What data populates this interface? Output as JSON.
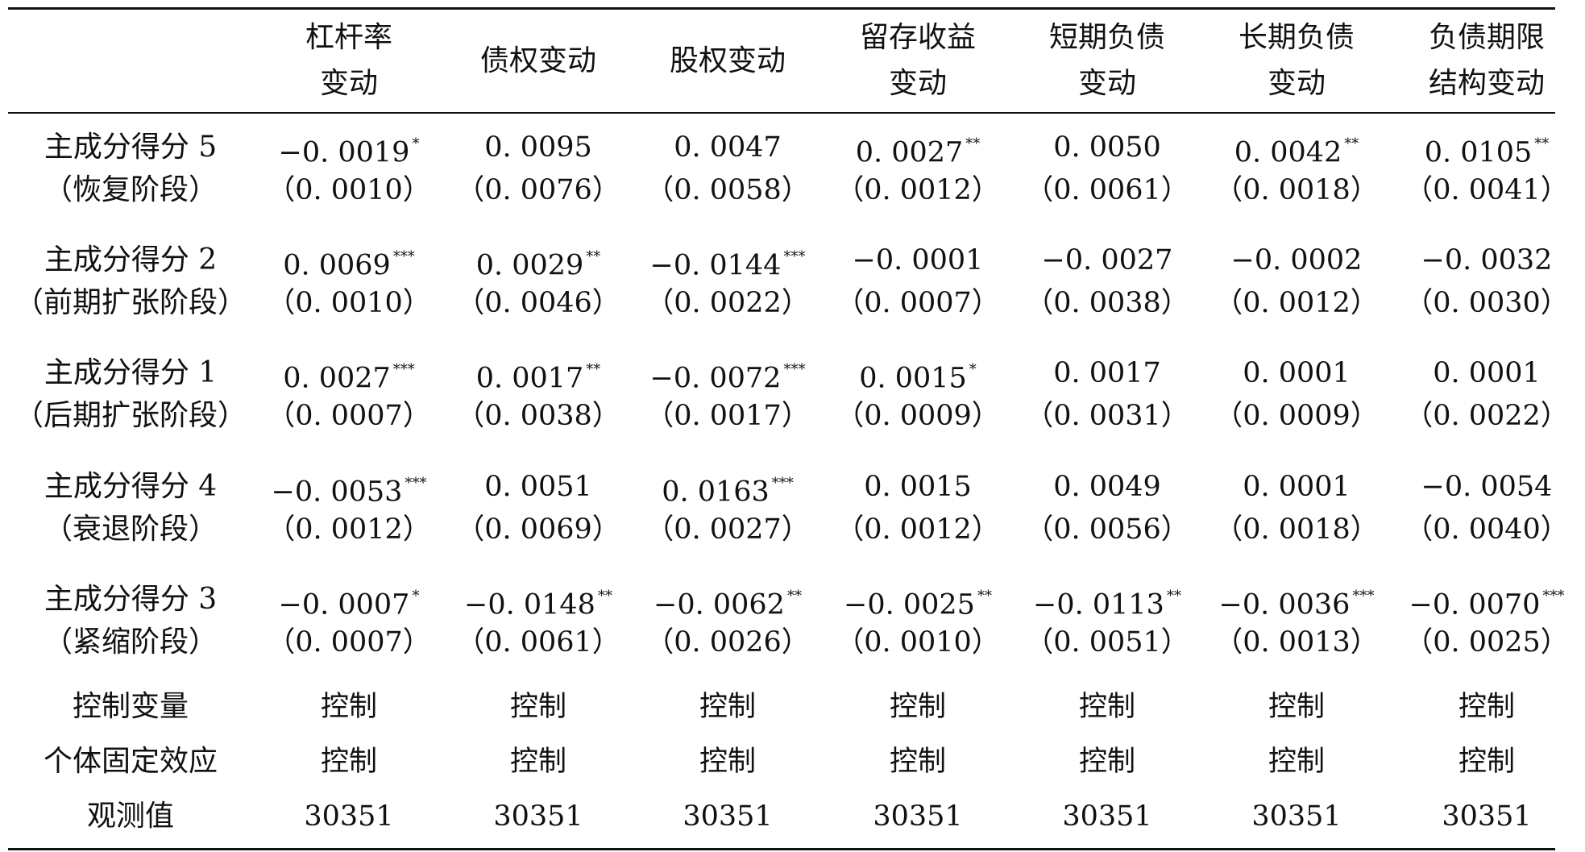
{
  "columns": [
    [
      "杠杆率",
      "变动"
    ],
    [
      "债权变动"
    ],
    [
      "股权变动"
    ],
    [
      "留存收益",
      "变动"
    ],
    [
      "短期负债",
      "变动"
    ],
    [
      "长期负债",
      "变动"
    ],
    [
      "负债期限",
      "结构变动"
    ]
  ],
  "rows": [
    {
      "label": [
        "主成分得分 5",
        "（恢复阶段）"
      ],
      "coef": [
        "−0. 0019",
        "0. 0095",
        "0. 0047",
        "0. 0027",
        "0. 0050",
        "0. 0042",
        "0. 0105"
      ],
      "stars": [
        "*",
        "",
        "",
        "**",
        "",
        "**",
        "**"
      ],
      "se": [
        "（0. 0010）",
        "（0. 0076）",
        "（0. 0058）",
        "（0. 0012）",
        "（0. 0061）",
        "（0. 0018）",
        "（0. 0041）"
      ]
    },
    {
      "label": [
        "主成分得分 2",
        "（前期扩张阶段）"
      ],
      "coef": [
        "0. 0069",
        "0. 0029",
        "−0. 0144",
        "−0. 0001",
        "−0. 0027",
        "−0. 0002",
        "−0. 0032"
      ],
      "stars": [
        "***",
        "**",
        "***",
        "",
        "",
        "",
        ""
      ],
      "se": [
        "（0. 0010）",
        "（0. 0046）",
        "（0. 0022）",
        "（0. 0007）",
        "（0. 0038）",
        "（0. 0012）",
        "（0. 0030）"
      ]
    },
    {
      "label": [
        "主成分得分 1",
        "（后期扩张阶段）"
      ],
      "coef": [
        "0. 0027",
        "0. 0017",
        "−0. 0072",
        "0. 0015",
        "0. 0017",
        "0. 0001",
        "0. 0001"
      ],
      "stars": [
        "***",
        "**",
        "***",
        "*",
        "",
        "",
        ""
      ],
      "se": [
        "（0. 0007）",
        "（0. 0038）",
        "（0. 0017）",
        "（0. 0009）",
        "（0. 0031）",
        "（0. 0009）",
        "（0. 0022）"
      ]
    },
    {
      "label": [
        "主成分得分 4",
        "（衰退阶段）"
      ],
      "coef": [
        "−0. 0053",
        "0. 0051",
        "0. 0163",
        "0. 0015",
        "0. 0049",
        "0. 0001",
        "−0. 0054"
      ],
      "stars": [
        "***",
        "",
        "***",
        "",
        "",
        "",
        ""
      ],
      "se": [
        "（0. 0012）",
        "（0. 0069）",
        "（0. 0027）",
        "（0. 0012）",
        "（0. 0056）",
        "（0. 0018）",
        "（0. 0040）"
      ]
    },
    {
      "label": [
        "主成分得分 3",
        "（紧缩阶段）"
      ],
      "coef": [
        "−0. 0007",
        "−0. 0148",
        "−0. 0062",
        "−0. 0025",
        "−0. 0113",
        "−0. 0036",
        "−0. 0070"
      ],
      "stars": [
        "*",
        "**",
        "**",
        "**",
        "**",
        "***",
        "***"
      ],
      "se": [
        "（0. 0007）",
        "（0. 0061）",
        "（0. 0026）",
        "（0. 0010）",
        "（0. 0051）",
        "（0. 0013）",
        "（0. 0025）"
      ]
    }
  ],
  "footer": [
    {
      "label": "控制变量",
      "values": [
        "控制",
        "控制",
        "控制",
        "控制",
        "控制",
        "控制",
        "控制"
      ]
    },
    {
      "label": "个体固定效应",
      "values": [
        "控制",
        "控制",
        "控制",
        "控制",
        "控制",
        "控制",
        "控制"
      ]
    },
    {
      "label": "观测值",
      "values": [
        "30351",
        "30351",
        "30351",
        "30351",
        "30351",
        "30351",
        "30351"
      ]
    }
  ]
}
